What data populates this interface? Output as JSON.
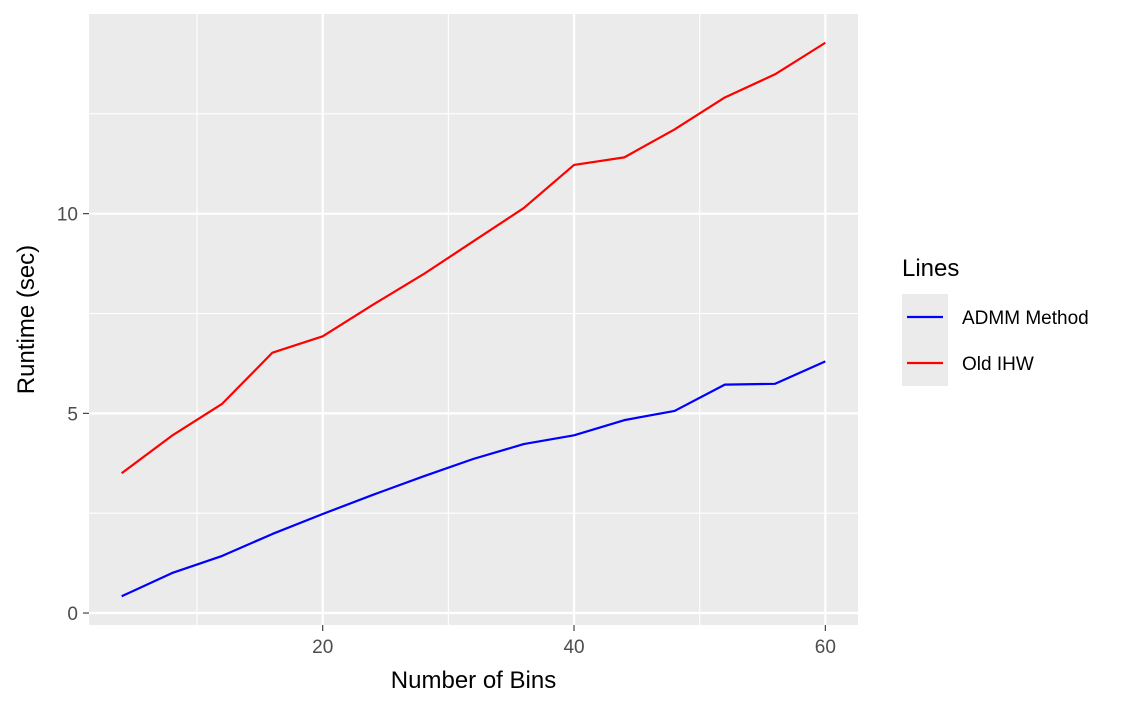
{
  "chart_data": {
    "type": "line",
    "title": "",
    "xlabel": "Number of Bins",
    "ylabel": "Runtime (sec)",
    "xlim": [
      1.4,
      62.6
    ],
    "ylim": [
      -0.3,
      15.0
    ],
    "x_ticks": [
      20,
      40,
      60
    ],
    "y_ticks": [
      0,
      5,
      10
    ],
    "x_minor": [
      10,
      30,
      50
    ],
    "y_minor": [
      2.5,
      7.5,
      12.5
    ],
    "grid": true,
    "legend": {
      "title": "Lines",
      "position": "right"
    },
    "series": [
      {
        "name": "ADMM Method",
        "color": "#0000ff",
        "x": [
          4,
          8,
          12,
          16,
          20,
          24,
          28,
          32,
          36,
          40,
          44,
          48,
          52,
          56,
          60
        ],
        "y": [
          0.42,
          1.0,
          1.43,
          1.98,
          2.48,
          2.96,
          3.42,
          3.86,
          4.23,
          4.45,
          4.83,
          5.06,
          5.72,
          5.74,
          6.3
        ]
      },
      {
        "name": "Old IHW",
        "color": "#ff0000",
        "x": [
          4,
          8,
          12,
          16,
          20,
          24,
          28,
          32,
          36,
          40,
          44,
          48,
          52,
          56,
          60
        ],
        "y": [
          3.5,
          4.44,
          5.24,
          6.52,
          6.93,
          7.72,
          8.48,
          9.31,
          10.14,
          11.22,
          11.41,
          12.11,
          12.91,
          13.49,
          14.28
        ]
      }
    ]
  }
}
